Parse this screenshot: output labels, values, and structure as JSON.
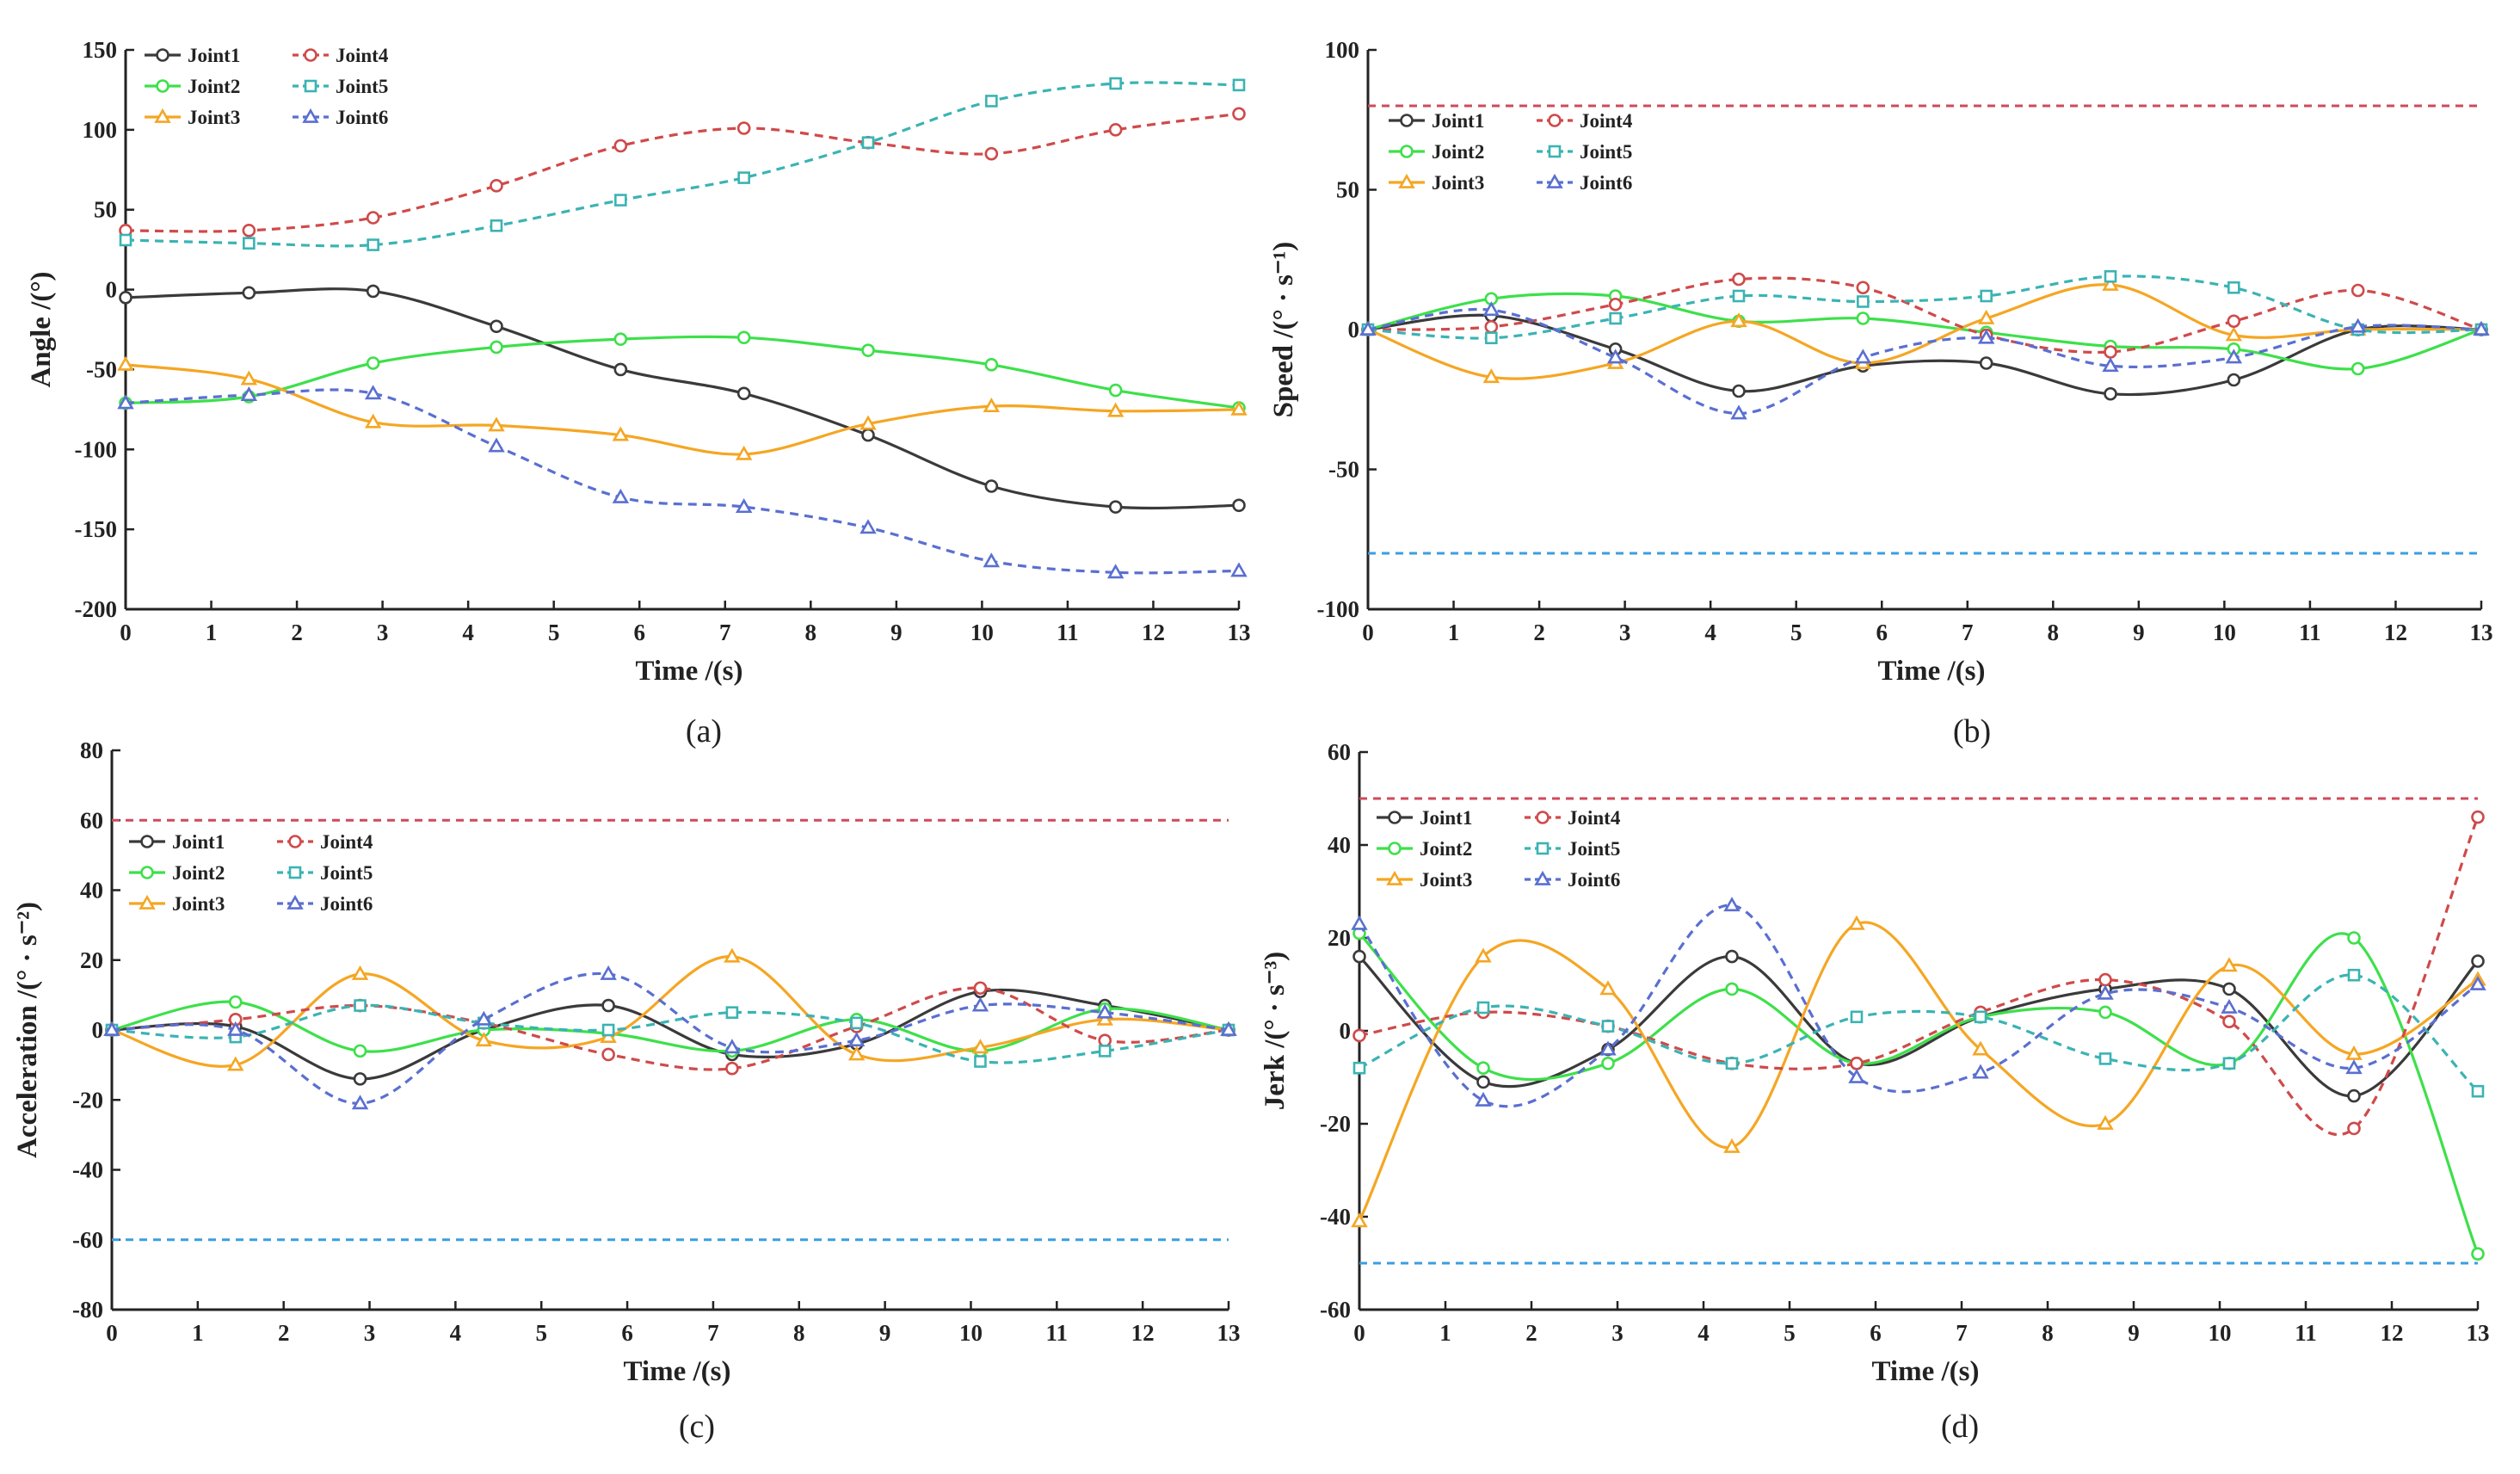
{
  "colors": {
    "Joint1": "#3a3a3a",
    "Joint2": "#3de04a",
    "Joint3": "#f5a623",
    "Joint4": "#cf4a4a",
    "Joint5": "#3bb3b3",
    "Joint6": "#5a6fd0",
    "upper_limit": "#cf4a5a",
    "lower_limit": "#3b9ee0"
  },
  "series_style": [
    {
      "name": "Joint1",
      "dash": "solid",
      "marker": "circle"
    },
    {
      "name": "Joint2",
      "dash": "solid",
      "marker": "circle"
    },
    {
      "name": "Joint3",
      "dash": "solid",
      "marker": "triangle"
    },
    {
      "name": "Joint4",
      "dash": "dashed",
      "marker": "circle"
    },
    {
      "name": "Joint5",
      "dash": "dashed",
      "marker": "square"
    },
    {
      "name": "Joint6",
      "dash": "dashed",
      "marker": "triangle"
    }
  ],
  "chart_data": [
    {
      "type": "line",
      "caption": "(a)",
      "xlabel_main": "Time",
      "xlabel_unit": "/(s)",
      "ylabel": "Angle  /(°)",
      "xlim": [
        0,
        13
      ],
      "ylim": [
        -200,
        150
      ],
      "xticks": [
        0,
        1,
        2,
        3,
        4,
        5,
        6,
        7,
        8,
        9,
        10,
        11,
        12,
        13
      ],
      "yticks": [
        -200,
        -150,
        -100,
        -50,
        0,
        50,
        100,
        150
      ],
      "limits": [],
      "legend_position": "top-left",
      "x": [
        0,
        1.44,
        2.89,
        4.33,
        5.78,
        7.22,
        8.67,
        10.11,
        11.56,
        13
      ],
      "series": [
        {
          "name": "Joint1",
          "values": [
            -5,
            -2,
            -1,
            -23,
            -50,
            -65,
            -91,
            -123,
            -136,
            -135
          ]
        },
        {
          "name": "Joint2",
          "values": [
            -71,
            -67,
            -46,
            -36,
            -31,
            -30,
            -38,
            -47,
            -63,
            -74
          ]
        },
        {
          "name": "Joint3",
          "values": [
            -47,
            -56,
            -83,
            -85,
            -91,
            -103,
            -84,
            -73,
            -76,
            -75
          ]
        },
        {
          "name": "Joint4",
          "values": [
            37,
            37,
            45,
            65,
            90,
            101,
            92,
            85,
            100,
            110
          ]
        },
        {
          "name": "Joint5",
          "values": [
            31,
            29,
            28,
            40,
            56,
            70,
            92,
            118,
            129,
            128
          ]
        },
        {
          "name": "Joint6",
          "values": [
            -71,
            -66,
            -65,
            -98,
            -130,
            -136,
            -149,
            -170,
            -177,
            -176
          ]
        }
      ]
    },
    {
      "type": "line",
      "caption": "(b)",
      "xlabel_main": "Time",
      "xlabel_unit": "/(s)",
      "ylabel": "Speed  /(° · s⁻¹)",
      "xlim": [
        0,
        13
      ],
      "ylim": [
        -100,
        100
      ],
      "xticks": [
        0,
        1,
        2,
        3,
        4,
        5,
        6,
        7,
        8,
        9,
        10,
        11,
        12,
        13
      ],
      "yticks": [
        -100,
        -50,
        0,
        50,
        100
      ],
      "limits": [
        80,
        -80
      ],
      "legend_position": "upper-left",
      "x": [
        0,
        1.44,
        2.89,
        4.33,
        5.78,
        7.22,
        8.67,
        10.11,
        11.56,
        13
      ],
      "series": [
        {
          "name": "Joint1",
          "values": [
            0,
            5,
            -7,
            -22,
            -13,
            -12,
            -23,
            -18,
            0,
            0
          ]
        },
        {
          "name": "Joint2",
          "values": [
            0,
            11,
            12,
            3,
            4,
            -1,
            -6,
            -7,
            -14,
            0
          ]
        },
        {
          "name": "Joint3",
          "values": [
            0,
            -17,
            -12,
            3,
            -12,
            4,
            16,
            -2,
            0,
            0
          ]
        },
        {
          "name": "Joint4",
          "values": [
            0,
            1,
            9,
            18,
            15,
            -2,
            -8,
            3,
            14,
            0
          ]
        },
        {
          "name": "Joint5",
          "values": [
            0,
            -3,
            4,
            12,
            10,
            12,
            19,
            15,
            0,
            0
          ]
        },
        {
          "name": "Joint6",
          "values": [
            0,
            7,
            -10,
            -30,
            -10,
            -3,
            -13,
            -10,
            1,
            0
          ]
        }
      ]
    },
    {
      "type": "line",
      "caption": "(c)",
      "xlabel_main": "Time",
      "xlabel_unit": "/(s)",
      "ylabel": "Acceleration /(° · s⁻²)",
      "xlim": [
        0,
        13
      ],
      "ylim": [
        -80,
        80
      ],
      "xticks": [
        0,
        1,
        2,
        3,
        4,
        5,
        6,
        7,
        8,
        9,
        10,
        11,
        12,
        13
      ],
      "yticks": [
        -80,
        -60,
        -40,
        -20,
        0,
        20,
        40,
        60,
        80
      ],
      "limits": [
        60,
        -60
      ],
      "legend_position": "upper-left",
      "x": [
        0,
        1.44,
        2.89,
        4.33,
        5.78,
        7.22,
        8.67,
        10.11,
        11.56,
        13
      ],
      "series": [
        {
          "name": "Joint1",
          "values": [
            0,
            1,
            -14,
            0,
            7,
            -7,
            -4,
            11,
            7,
            0
          ]
        },
        {
          "name": "Joint2",
          "values": [
            0,
            8,
            -6,
            0,
            -1,
            -6,
            3,
            -6,
            6,
            0
          ]
        },
        {
          "name": "Joint3",
          "values": [
            0,
            -10,
            16,
            -3,
            -2,
            21,
            -7,
            -5,
            3,
            0
          ]
        },
        {
          "name": "Joint4",
          "values": [
            0,
            3,
            7,
            2,
            -7,
            -11,
            1,
            12,
            -3,
            0
          ]
        },
        {
          "name": "Joint5",
          "values": [
            0,
            -2,
            7,
            2,
            0,
            5,
            2,
            -9,
            -6,
            0
          ]
        },
        {
          "name": "Joint6",
          "values": [
            0,
            0,
            -21,
            3,
            16,
            -5,
            -3,
            7,
            5,
            0
          ]
        }
      ]
    },
    {
      "type": "line",
      "caption": "(d)",
      "xlabel_main": "Time",
      "xlabel_unit": "/(s)",
      "ylabel": "Jerk /(° · s⁻³)",
      "xlim": [
        0,
        13
      ],
      "ylim": [
        -60,
        60
      ],
      "xticks": [
        0,
        1,
        2,
        3,
        4,
        5,
        6,
        7,
        8,
        9,
        10,
        11,
        12,
        13
      ],
      "yticks": [
        -60,
        -40,
        -20,
        0,
        20,
        40,
        60
      ],
      "limits": [
        50,
        -50
      ],
      "legend_position": "upper-left",
      "x": [
        0,
        1.44,
        2.89,
        4.33,
        5.78,
        7.22,
        8.67,
        10.11,
        11.56,
        13
      ],
      "series": [
        {
          "name": "Joint1",
          "values": [
            16,
            -11,
            -4,
            16,
            -7,
            3,
            9,
            9,
            -14,
            15
          ]
        },
        {
          "name": "Joint2",
          "values": [
            21,
            -8,
            -7,
            9,
            -7,
            3,
            4,
            -7,
            20,
            -48
          ]
        },
        {
          "name": "Joint3",
          "values": [
            -41,
            16,
            9,
            -25,
            23,
            -4,
            -20,
            14,
            -5,
            11
          ]
        },
        {
          "name": "Joint4",
          "values": [
            -1,
            4,
            1,
            -7,
            -7,
            4,
            11,
            2,
            -21,
            46
          ]
        },
        {
          "name": "Joint5",
          "values": [
            -8,
            5,
            1,
            -7,
            3,
            3,
            -6,
            -7,
            12,
            -13
          ]
        },
        {
          "name": "Joint6",
          "values": [
            23,
            -15,
            -4,
            27,
            -10,
            -9,
            8,
            5,
            -8,
            10
          ]
        }
      ]
    }
  ]
}
